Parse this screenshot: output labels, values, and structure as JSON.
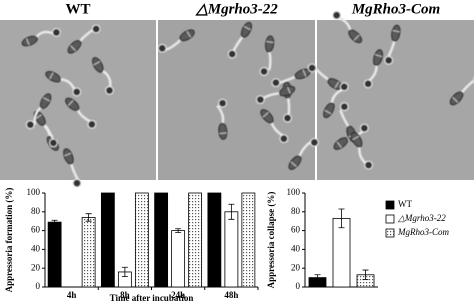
{
  "panels": [
    "WT",
    "△Mgrho3-22",
    "MgRho3-Com"
  ],
  "chart_data": [
    {
      "type": "bar",
      "y_label": "Appressoria formation (%)",
      "x_label": "Time after incubation",
      "categories": [
        "4h",
        "8h",
        "24h",
        "48h"
      ],
      "series": [
        {
          "color": "#000000",
          "values": [
            69,
            100,
            100,
            100
          ],
          "errors": [
            2,
            0,
            0,
            0
          ]
        },
        {
          "color": "#ffffff",
          "values": [
            0,
            16,
            60,
            80
          ],
          "errors": [
            0,
            5,
            2,
            8
          ]
        },
        {
          "color": "dots",
          "values": [
            74,
            100,
            100,
            100
          ],
          "errors": [
            4,
            0,
            0,
            0
          ]
        }
      ],
      "ylim": [
        0,
        100
      ],
      "yticks": [
        0,
        20,
        40,
        60,
        80,
        100
      ]
    },
    {
      "type": "bar",
      "y_label": "Appressoria collapse (%)",
      "series": [
        {
          "name": "WT",
          "color": "#000000",
          "values": [
            10
          ],
          "errors": [
            3
          ]
        },
        {
          "name": "△Mgrho3-22",
          "color": "#ffffff",
          "values": [
            73
          ],
          "errors": [
            10
          ]
        },
        {
          "name": "MgRho3-Com",
          "color": "dots",
          "values": [
            13
          ],
          "errors": [
            5
          ]
        }
      ],
      "ylim": [
        0,
        100
      ],
      "yticks": [
        0,
        20,
        40,
        60,
        80,
        100
      ]
    }
  ]
}
